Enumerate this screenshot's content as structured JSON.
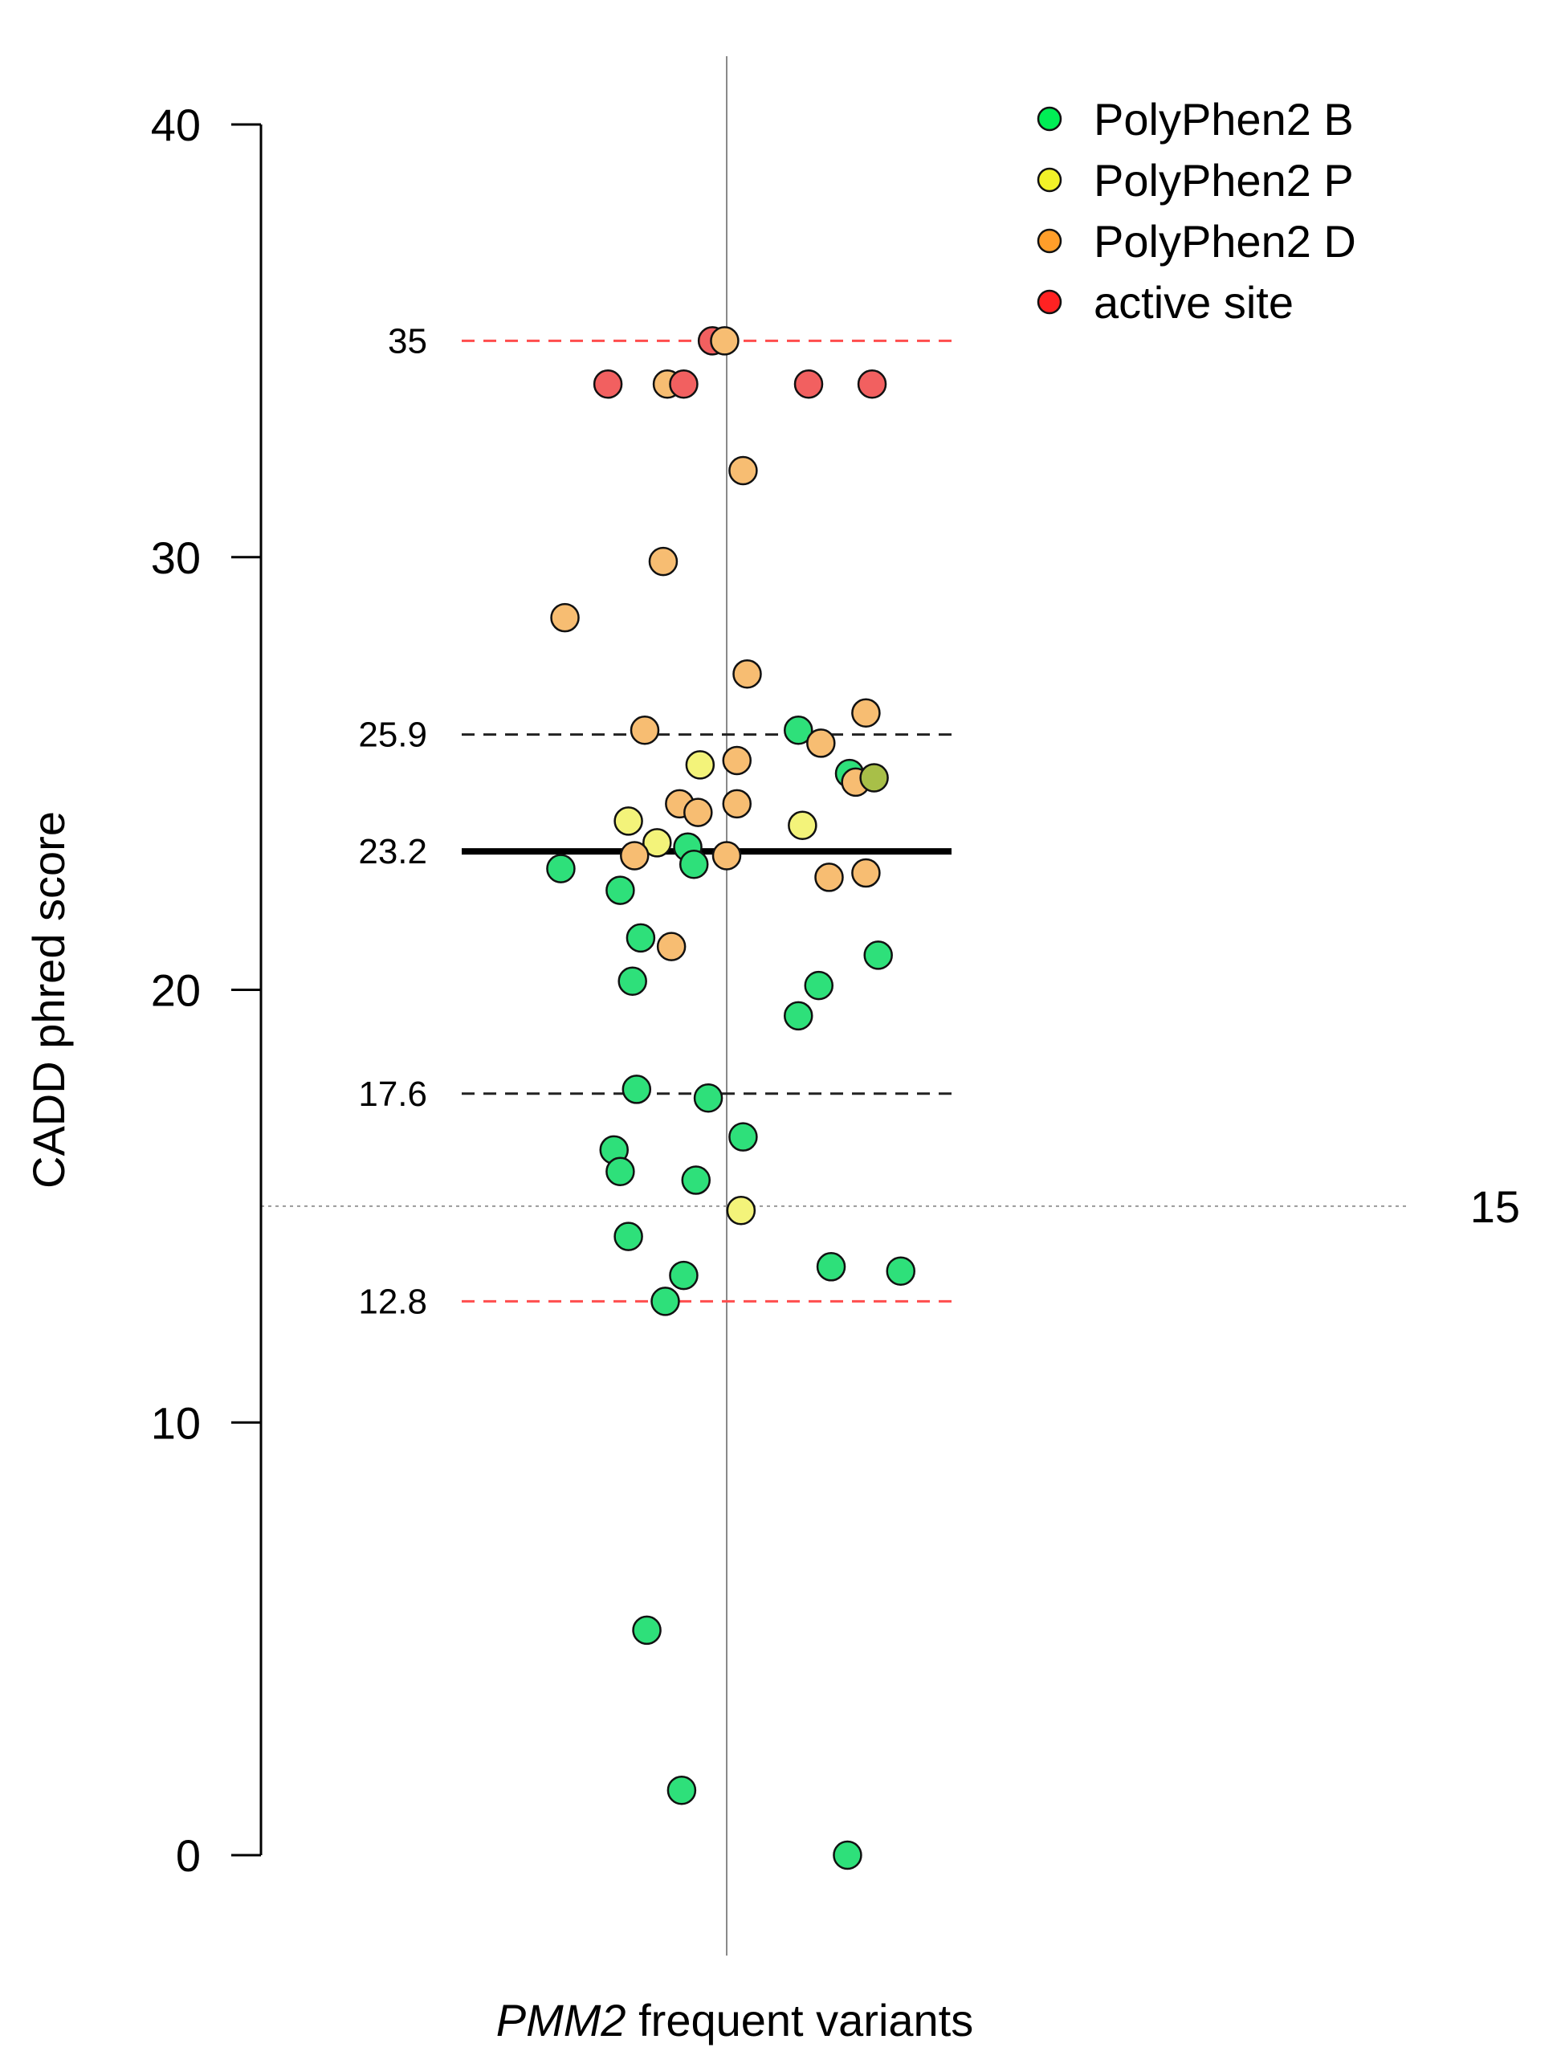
{
  "chart_data": {
    "type": "scatter",
    "ylabel": "CADD phred score",
    "xlabel_italic": "PMM2",
    "xlabel_rest": " frequent variants",
    "ylim": [
      0,
      40
    ],
    "yticks": [
      0,
      10,
      20,
      30,
      40
    ],
    "ref_lines": [
      {
        "value": 35,
        "label": "35",
        "style": "red-dashed"
      },
      {
        "value": 25.9,
        "label": "25.9",
        "style": "black-dashed"
      },
      {
        "value": 23.2,
        "label": "23.2",
        "style": "black-solid-thick"
      },
      {
        "value": 17.6,
        "label": "17.6",
        "style": "black-dashed"
      },
      {
        "value": 12.8,
        "label": "12.8",
        "style": "red-dashed"
      },
      {
        "value": 15,
        "label": "15",
        "style": "gray-dotted"
      }
    ],
    "legend": [
      {
        "key": "B",
        "label": "PolyPhen2 B",
        "color": "#00ee55"
      },
      {
        "key": "P",
        "label": "PolyPhen2 P",
        "color": "#f2f228"
      },
      {
        "key": "D",
        "label": "PolyPhen2 D",
        "color": "#ff9e2a"
      },
      {
        "key": "A",
        "label": "active site",
        "color": "#ff2222"
      }
    ],
    "point_colors": {
      "B": "#2ee07a",
      "P": "#f3f37a",
      "D": "#f7bd72",
      "A": "#f26060",
      "O": "#a8bf48"
    },
    "x_range": [
      -1,
      1
    ],
    "points": [
      {
        "x": -0.07,
        "y": 35.0,
        "cat": "A"
      },
      {
        "x": -0.01,
        "y": 35.0,
        "cat": "D"
      },
      {
        "x": -0.58,
        "y": 34.0,
        "cat": "A"
      },
      {
        "x": -0.29,
        "y": 34.0,
        "cat": "D"
      },
      {
        "x": -0.21,
        "y": 34.0,
        "cat": "A"
      },
      {
        "x": 0.4,
        "y": 34.0,
        "cat": "A"
      },
      {
        "x": 0.71,
        "y": 34.0,
        "cat": "A"
      },
      {
        "x": 0.08,
        "y": 32.0,
        "cat": "D"
      },
      {
        "x": -0.31,
        "y": 29.9,
        "cat": "D"
      },
      {
        "x": -0.79,
        "y": 28.6,
        "cat": "D"
      },
      {
        "x": 0.1,
        "y": 27.3,
        "cat": "D"
      },
      {
        "x": 0.68,
        "y": 26.4,
        "cat": "D"
      },
      {
        "x": -0.4,
        "y": 26.0,
        "cat": "D"
      },
      {
        "x": 0.35,
        "y": 26.0,
        "cat": "B"
      },
      {
        "x": 0.46,
        "y": 25.7,
        "cat": "D"
      },
      {
        "x": 0.05,
        "y": 25.3,
        "cat": "D"
      },
      {
        "x": -0.13,
        "y": 25.2,
        "cat": "P"
      },
      {
        "x": 0.6,
        "y": 25.0,
        "cat": "B"
      },
      {
        "x": 0.63,
        "y": 24.8,
        "cat": "D"
      },
      {
        "x": 0.72,
        "y": 24.9,
        "cat": "O"
      },
      {
        "x": -0.23,
        "y": 24.3,
        "cat": "D"
      },
      {
        "x": 0.05,
        "y": 24.3,
        "cat": "D"
      },
      {
        "x": -0.14,
        "y": 24.1,
        "cat": "D"
      },
      {
        "x": -0.48,
        "y": 23.9,
        "cat": "P"
      },
      {
        "x": 0.37,
        "y": 23.8,
        "cat": "P"
      },
      {
        "x": -0.34,
        "y": 23.4,
        "cat": "P"
      },
      {
        "x": -0.19,
        "y": 23.3,
        "cat": "B"
      },
      {
        "x": -0.45,
        "y": 23.1,
        "cat": "D"
      },
      {
        "x": 0.0,
        "y": 23.1,
        "cat": "D"
      },
      {
        "x": -0.16,
        "y": 22.9,
        "cat": "B"
      },
      {
        "x": -0.81,
        "y": 22.8,
        "cat": "B"
      },
      {
        "x": 0.5,
        "y": 22.6,
        "cat": "D"
      },
      {
        "x": 0.68,
        "y": 22.7,
        "cat": "D"
      },
      {
        "x": -0.52,
        "y": 22.3,
        "cat": "B"
      },
      {
        "x": -0.42,
        "y": 21.2,
        "cat": "B"
      },
      {
        "x": -0.27,
        "y": 21.0,
        "cat": "D"
      },
      {
        "x": 0.74,
        "y": 20.8,
        "cat": "B"
      },
      {
        "x": -0.46,
        "y": 20.2,
        "cat": "B"
      },
      {
        "x": 0.45,
        "y": 20.1,
        "cat": "B"
      },
      {
        "x": 0.35,
        "y": 19.4,
        "cat": "B"
      },
      {
        "x": -0.44,
        "y": 17.7,
        "cat": "B"
      },
      {
        "x": -0.09,
        "y": 17.5,
        "cat": "B"
      },
      {
        "x": 0.08,
        "y": 16.6,
        "cat": "B"
      },
      {
        "x": -0.55,
        "y": 16.3,
        "cat": "B"
      },
      {
        "x": -0.52,
        "y": 15.8,
        "cat": "B"
      },
      {
        "x": -0.15,
        "y": 15.6,
        "cat": "B"
      },
      {
        "x": 0.07,
        "y": 14.9,
        "cat": "P"
      },
      {
        "x": -0.48,
        "y": 14.3,
        "cat": "B"
      },
      {
        "x": 0.51,
        "y": 13.6,
        "cat": "B"
      },
      {
        "x": 0.85,
        "y": 13.5,
        "cat": "B"
      },
      {
        "x": -0.21,
        "y": 13.4,
        "cat": "B"
      },
      {
        "x": -0.3,
        "y": 12.8,
        "cat": "B"
      },
      {
        "x": -0.39,
        "y": 5.2,
        "cat": "B"
      },
      {
        "x": -0.22,
        "y": 1.5,
        "cat": "B"
      },
      {
        "x": 0.59,
        "y": 0.0,
        "cat": "B"
      }
    ]
  }
}
